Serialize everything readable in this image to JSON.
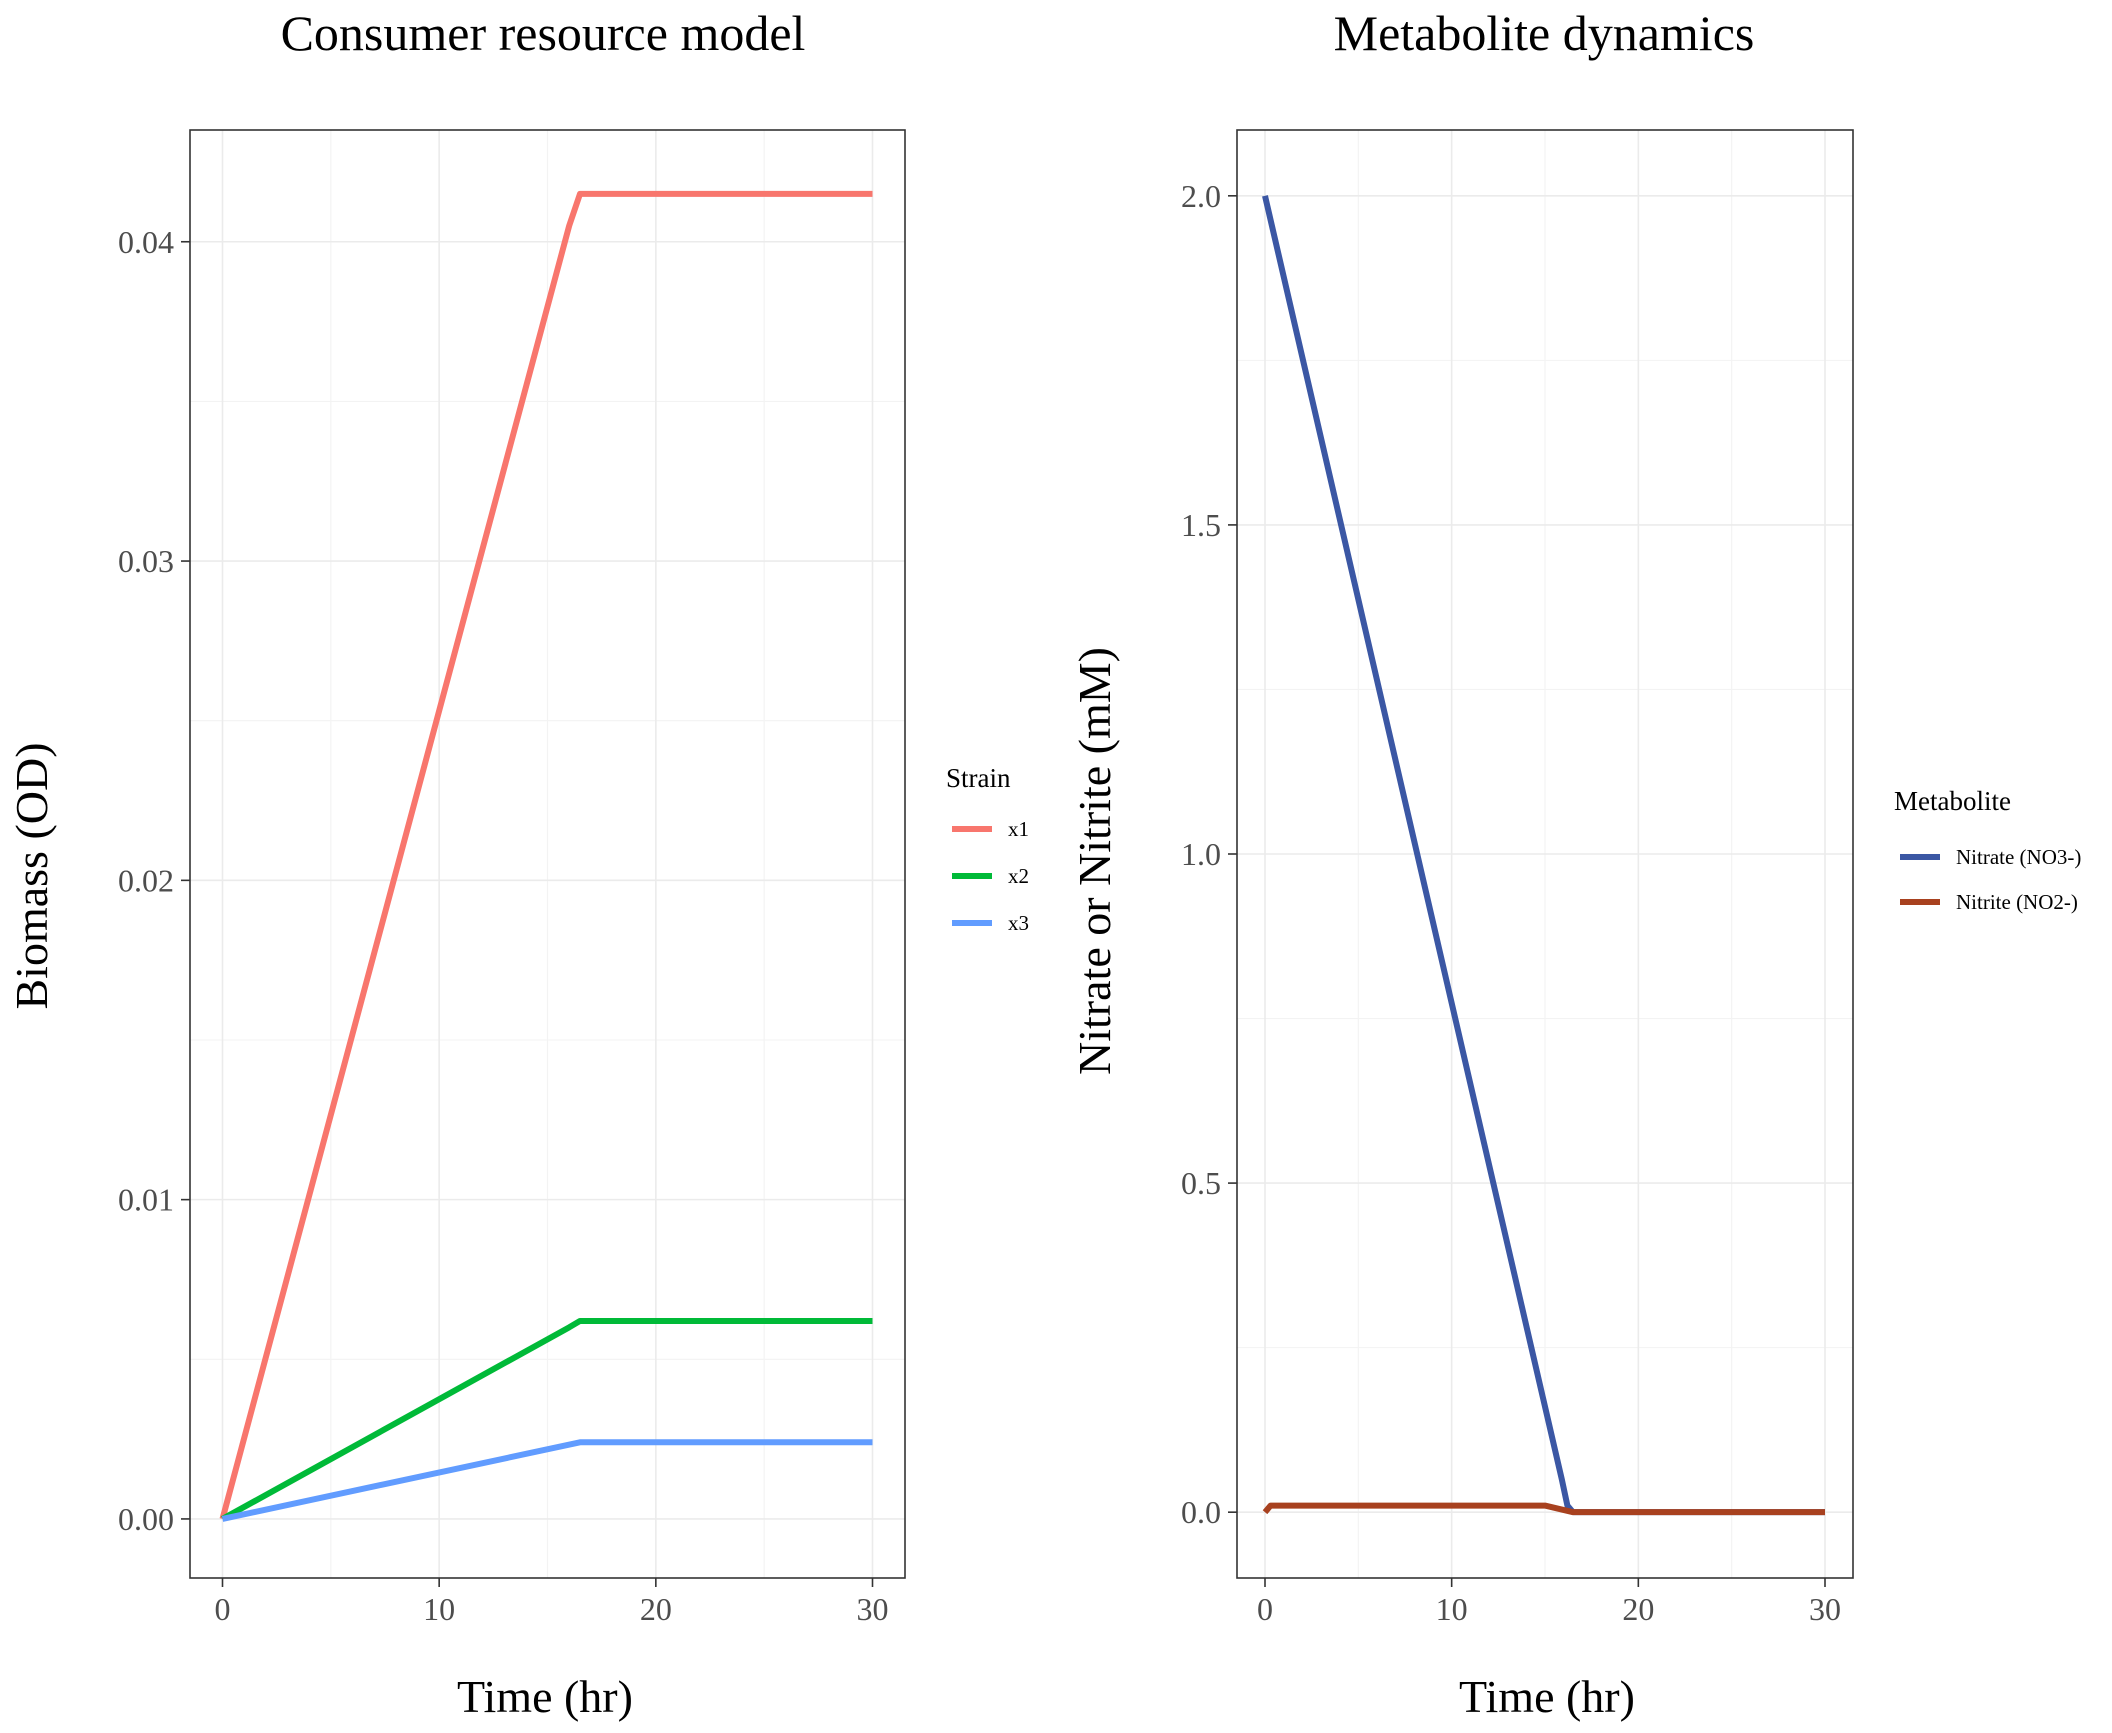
{
  "chart_data": [
    {
      "type": "line",
      "title": "Consumer resource model",
      "xlabel": "Time (hr)",
      "ylabel": "Biomass (OD)",
      "xlim": [
        -1.5,
        31.5
      ],
      "ylim": [
        -0.00185,
        0.0435
      ],
      "x_ticks": [
        0,
        10,
        20,
        30
      ],
      "x_tick_labels": [
        "0",
        "10",
        "20",
        "30"
      ],
      "y_ticks": [
        0,
        0.01,
        0.02,
        0.03,
        0.04
      ],
      "y_tick_labels": [
        "0.00",
        "0.01",
        "0.02",
        "0.03",
        "0.04"
      ],
      "grid": true,
      "legend": {
        "title": "Strain",
        "position": "right"
      },
      "series": [
        {
          "name": "x1",
          "color": "#F8766D",
          "x": [
            0,
            16,
            16.5,
            30
          ],
          "y": [
            0,
            0.0405,
            0.0415,
            0.0415
          ]
        },
        {
          "name": "x2",
          "color": "#00BA38",
          "x": [
            0,
            16,
            16.5,
            30
          ],
          "y": [
            0,
            0.006,
            0.0062,
            0.0062
          ]
        },
        {
          "name": "x3",
          "color": "#619CFF",
          "x": [
            0,
            16.5,
            30
          ],
          "y": [
            0,
            0.0024,
            0.0024
          ]
        }
      ]
    },
    {
      "type": "line",
      "title": "Metabolite dynamics",
      "xlabel": "Time (hr)",
      "ylabel": "Nitrate or Nitrite (mM)",
      "xlim": [
        -1.5,
        31.5
      ],
      "ylim": [
        -0.1,
        2.1
      ],
      "x_ticks": [
        0,
        10,
        20,
        30
      ],
      "x_tick_labels": [
        "0",
        "10",
        "20",
        "30"
      ],
      "y_ticks": [
        0,
        0.5,
        1.0,
        1.5,
        2.0
      ],
      "y_tick_labels": [
        "0.0",
        "0.5",
        "1.0",
        "1.5",
        "2.0"
      ],
      "grid": true,
      "legend": {
        "title": "Metabolite",
        "position": "right"
      },
      "series": [
        {
          "name": "Nitrate (NO3-)",
          "color": "#3B57A4",
          "x": [
            0,
            15.9,
            16.2,
            16.5,
            30
          ],
          "y": [
            2.0,
            0.05,
            0.01,
            0,
            0
          ]
        },
        {
          "name": "Nitrite (NO2-)",
          "color": "#A8411F",
          "x": [
            0,
            0.3,
            15,
            16.5,
            30
          ],
          "y": [
            0,
            0.01,
            0.01,
            0,
            0
          ]
        }
      ]
    }
  ]
}
